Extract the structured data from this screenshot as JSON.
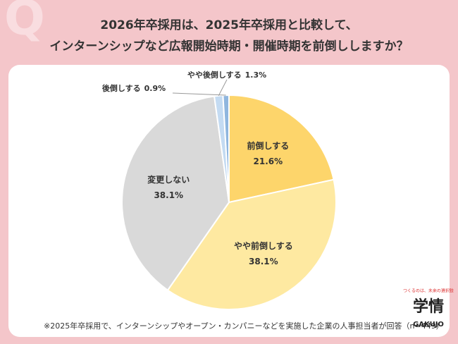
{
  "watermark": "Q",
  "footnote": "※2025年卒採用で、インターンシップやオープン・カンパニーなどを実施した企業の人事担当者が回答（n=449）",
  "logo": {
    "tagline": "つくるのは、未来の選択肢",
    "mark": "学情",
    "brand": "GAKUJO"
  },
  "chart_data": {
    "type": "pie",
    "title": [
      "2026年卒採用は、2025年卒採用と比較して、",
      "インターンシップなど広報開始時期・開催時期を前倒ししますか？"
    ],
    "categories": [
      "前倒しする",
      "やや前倒しする",
      "変更しない",
      "やや後倒しする",
      "後倒しする"
    ],
    "values": [
      21.6,
      38.1,
      38.1,
      1.3,
      0.9
    ],
    "value_labels": [
      "21.6%",
      "38.1%",
      "38.1%",
      "1.3%",
      "0.9%"
    ],
    "colors": [
      "#fdd56b",
      "#fee9a1",
      "#d9d9d9",
      "#c4dbf2",
      "#8fb6de"
    ]
  }
}
